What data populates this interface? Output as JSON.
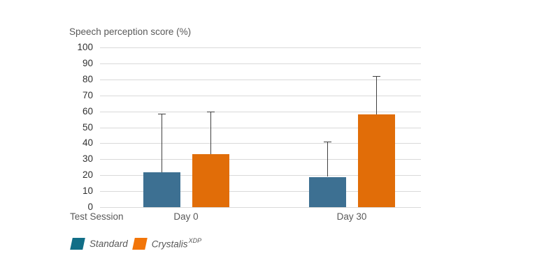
{
  "chart_data": {
    "type": "bar",
    "title": "Speech perception score (%)",
    "xlabel": "Test Session",
    "categories": [
      "Day 0",
      "Day 30"
    ],
    "series": [
      {
        "name": "Standard",
        "name_sup": "",
        "color": "#3d7092",
        "legend_color": "#116e87",
        "values": [
          22,
          19
        ],
        "error_top": [
          58.5,
          41
        ]
      },
      {
        "name": "Crystalis",
        "name_sup": "XDP",
        "color": "#e16d08",
        "legend_color": "#f27509",
        "values": [
          33,
          58
        ],
        "error_top": [
          60,
          82
        ]
      }
    ],
    "ylim": [
      0,
      100
    ],
    "yticks": [
      0,
      10,
      20,
      30,
      40,
      50,
      60,
      70,
      80,
      90,
      100
    ],
    "grid": true,
    "error_bars": "upper-whisker-with-cap",
    "legend_position": "bottom-left"
  },
  "colors": {
    "background": "#ffffff",
    "grid": "#d9d9d9",
    "error_bar": "#404040",
    "tick_text": "#303030",
    "label_text": "#595959"
  }
}
